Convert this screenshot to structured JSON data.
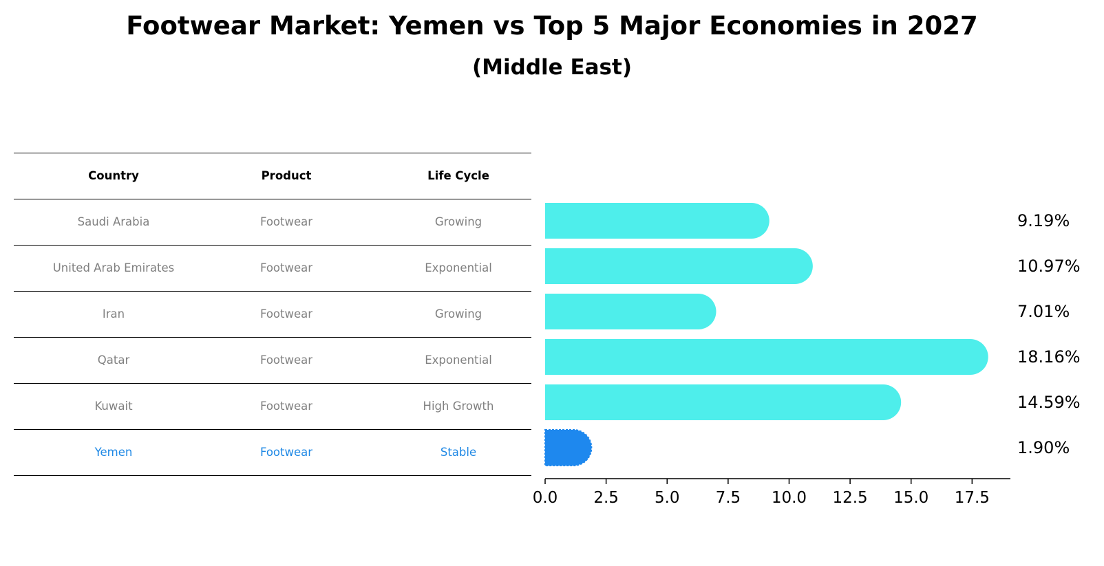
{
  "title": "Footwear Market: Yemen vs Top 5 Major Economies in 2027",
  "subtitle": "(Middle East)",
  "table": {
    "headers": [
      "Country",
      "Product",
      "Life Cycle"
    ],
    "rows": [
      [
        "Saudi Arabia",
        "Footwear",
        "Growing"
      ],
      [
        "United Arab Emirates",
        "Footwear",
        "Exponential"
      ],
      [
        "Iran",
        "Footwear",
        "Growing"
      ],
      [
        "Qatar",
        "Footwear",
        "Exponential"
      ],
      [
        "Kuwait",
        "Footwear",
        "High Growth"
      ],
      [
        "Yemen",
        "Footwear",
        "Stable"
      ]
    ],
    "highlight_row": 5
  },
  "colors": {
    "bar": "#4eeeeb",
    "highlight_bar": "#1e88ee",
    "highlight_text": "#1e88e5",
    "muted_text": "#808080"
  },
  "chart_data": {
    "type": "bar",
    "orientation": "horizontal",
    "categories": [
      "Saudi Arabia",
      "United Arab Emirates",
      "Iran",
      "Qatar",
      "Kuwait",
      "Yemen"
    ],
    "values": [
      9.19,
      10.97,
      7.01,
      18.16,
      14.59,
      1.9
    ],
    "value_labels": [
      "9.19%",
      "10.97%",
      "7.01%",
      "18.16%",
      "14.59%",
      "1.90%"
    ],
    "xticks": [
      0.0,
      2.5,
      5.0,
      7.5,
      10.0,
      12.5,
      15.0,
      17.5
    ],
    "xtick_labels": [
      "0.0",
      "2.5",
      "5.0",
      "7.5",
      "10.0",
      "12.5",
      "15.0",
      "17.5"
    ],
    "xlim": [
      0,
      19.07
    ],
    "highlight_index": 5
  }
}
